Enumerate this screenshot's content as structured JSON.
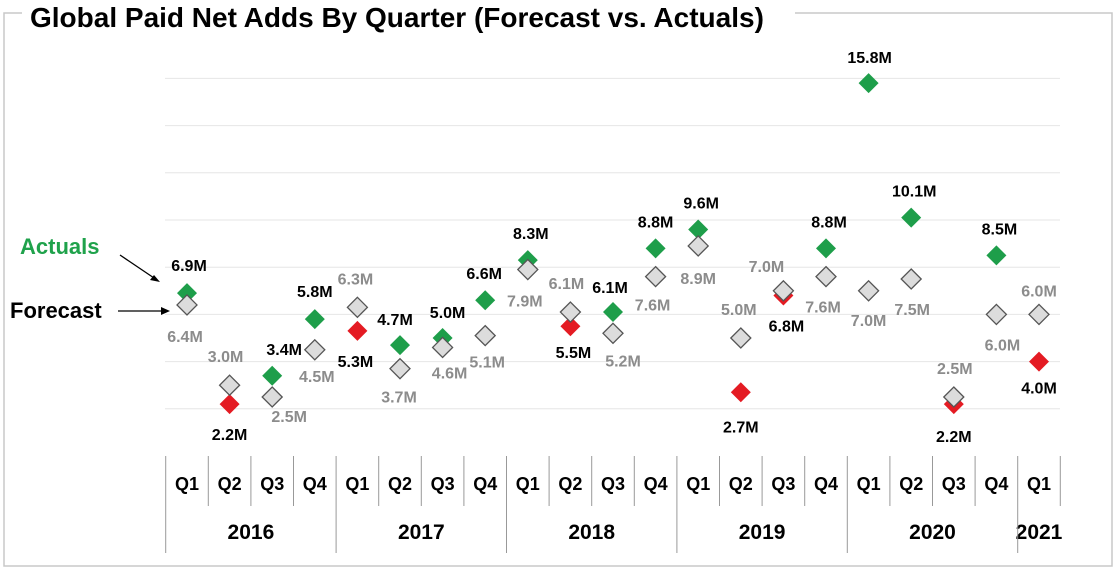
{
  "chart_data": {
    "type": "scatter",
    "title": "Global Paid Net Adds By Quarter (Forecast vs. Actuals)",
    "legend": {
      "actuals": "Actuals",
      "forecast": "Forecast"
    },
    "colors": {
      "beat": "#1e9e4a",
      "miss": "#e41b23",
      "forecast_fill": "#dcdcdc",
      "forecast_stroke": "#555555",
      "grid": "#e6e6e6",
      "actual_label": "#000000",
      "forecast_label": "#8c8c8c",
      "legend_actuals": "#1fa24b"
    },
    "ylim": [
      0,
      17
    ],
    "years": [
      {
        "label": "2016",
        "quarters": 4
      },
      {
        "label": "2017",
        "quarters": 4
      },
      {
        "label": "2018",
        "quarters": 4
      },
      {
        "label": "2019",
        "quarters": 4
      },
      {
        "label": "2020",
        "quarters": 4
      },
      {
        "label": "2021",
        "quarters": 1
      }
    ],
    "categories": [
      "Q1",
      "Q2",
      "Q3",
      "Q4",
      "Q1",
      "Q2",
      "Q3",
      "Q4",
      "Q1",
      "Q2",
      "Q3",
      "Q4",
      "Q1",
      "Q2",
      "Q3",
      "Q4",
      "Q1",
      "Q2",
      "Q3",
      "Q4",
      "Q1"
    ],
    "series": [
      {
        "name": "Actuals",
        "values": [
          6.9,
          2.2,
          3.4,
          5.8,
          5.3,
          4.7,
          5.0,
          6.6,
          8.3,
          5.5,
          6.1,
          8.8,
          9.6,
          2.7,
          6.8,
          8.8,
          15.8,
          10.1,
          2.2,
          8.5,
          4.0
        ],
        "labels": [
          "6.9M",
          "2.2M",
          "3.4M",
          "5.8M",
          "5.3M",
          "4.7M",
          "5.0M",
          "6.6M",
          "8.3M",
          "5.5M",
          "6.1M",
          "8.8M",
          "9.6M",
          "2.7M",
          "6.8M",
          "8.8M",
          "15.8M",
          "10.1M",
          "2.2M",
          "8.5M",
          "4.0M"
        ]
      },
      {
        "name": "Forecast",
        "values": [
          6.4,
          3.0,
          2.5,
          4.5,
          6.3,
          3.7,
          4.6,
          5.1,
          7.9,
          6.1,
          5.2,
          7.6,
          8.9,
          5.0,
          7.0,
          7.6,
          7.0,
          7.5,
          2.5,
          6.0,
          6.0
        ],
        "labels": [
          "6.4M",
          "3.0M",
          "2.5M",
          "4.5M",
          "6.3M",
          "3.7M",
          "4.6M",
          "5.1M",
          "7.9M",
          "6.1M",
          "5.2M",
          "7.6M",
          "8.9M",
          "5.0M",
          "7.0M",
          "7.6M",
          "7.0M",
          "7.5M",
          "2.5M",
          "6.0M",
          "6.0M"
        ]
      }
    ]
  }
}
